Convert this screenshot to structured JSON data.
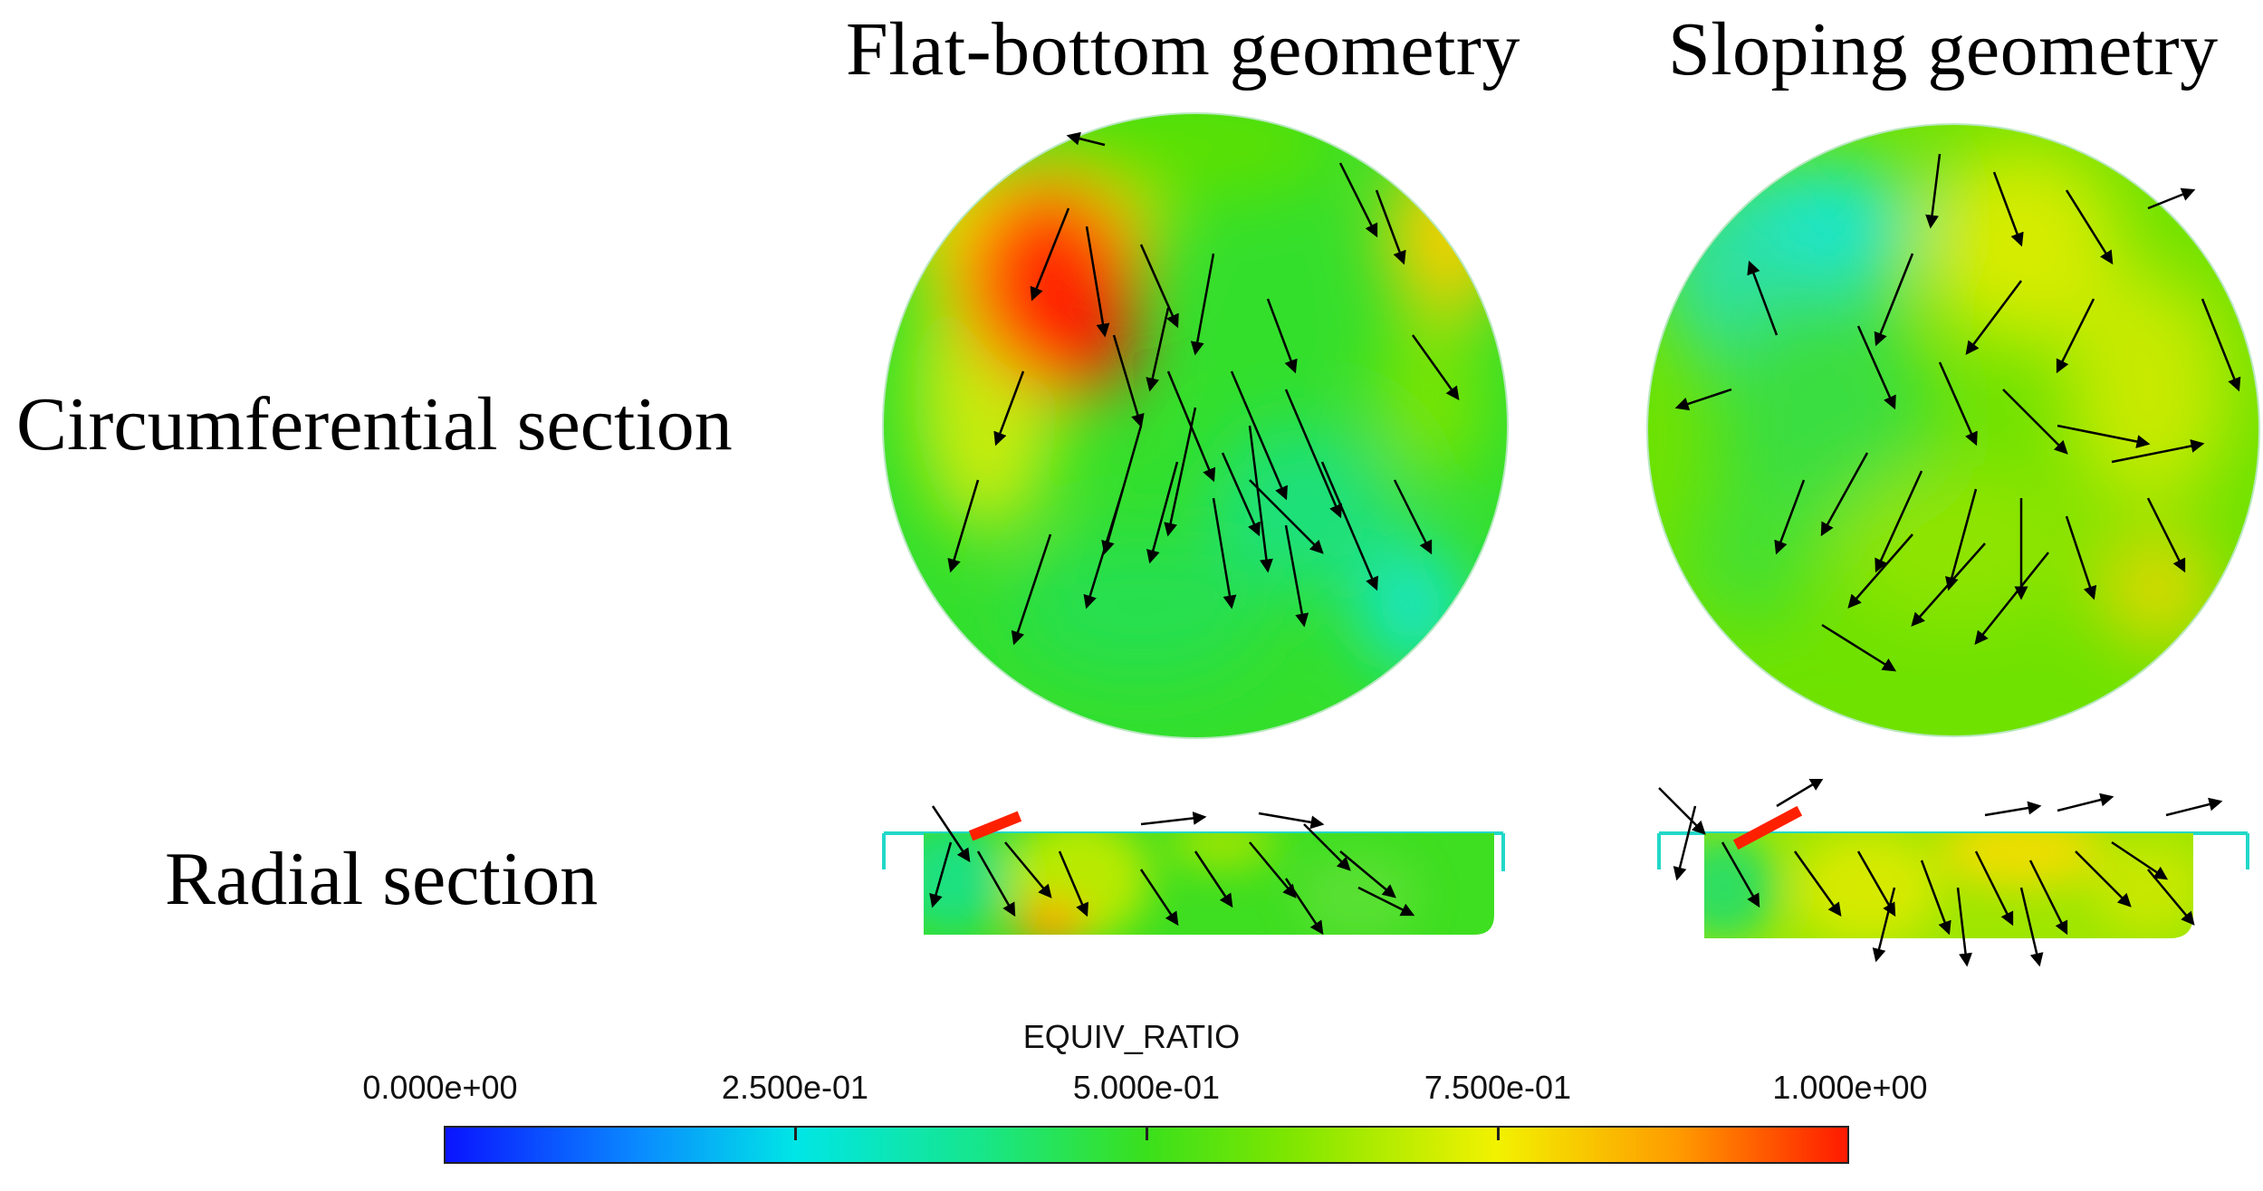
{
  "columns": {
    "flat": "Flat-bottom geometry",
    "sloping": "Sloping geometry"
  },
  "rows": {
    "circumferential": "Circumferential section",
    "radial": "Radial section"
  },
  "legend": {
    "title": "EQUIV_RATIO",
    "ticks": [
      "0.000e+00",
      "2.500e-01",
      "5.000e-01",
      "7.500e-01",
      "1.000e+00"
    ],
    "range": [
      0,
      1
    ],
    "colors": [
      "#0a14ff",
      "#00e6e6",
      "#3ae01c",
      "#f2f200",
      "#ff1a00"
    ]
  }
}
